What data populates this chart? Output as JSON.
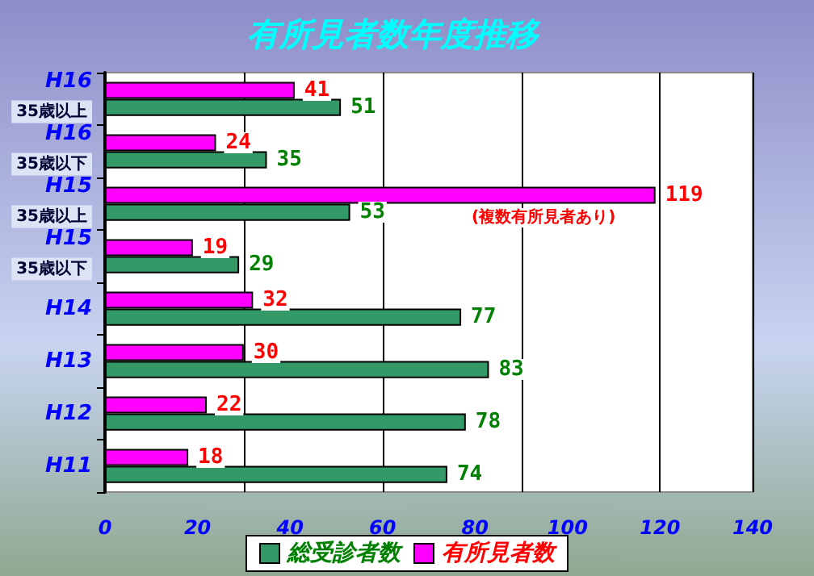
{
  "chart_data": {
    "type": "bar",
    "orientation": "horizontal",
    "title": "有所見者数年度推移",
    "categories": [
      "H16\n35歳以上",
      "H16\n35歳以下",
      "H15\n35歳以上",
      "H15\n35歳以下",
      "H14",
      "H13",
      "H12",
      "H11"
    ],
    "series": [
      {
        "name": "総受診者数",
        "color": "#339966",
        "values": [
          51,
          35,
          53,
          29,
          77,
          83,
          78,
          74
        ]
      },
      {
        "name": "有所見者数",
        "color": "#ff00ff",
        "values": [
          41,
          24,
          119,
          19,
          32,
          30,
          22,
          18
        ]
      }
    ],
    "xlim": [
      0,
      140
    ],
    "xticks": [
      0,
      20,
      40,
      60,
      80,
      100,
      120,
      140
    ],
    "grid": "x",
    "legend": "bottom",
    "data_labels": true,
    "annotations": [
      "(複数有所見者あり)"
    ]
  }
}
